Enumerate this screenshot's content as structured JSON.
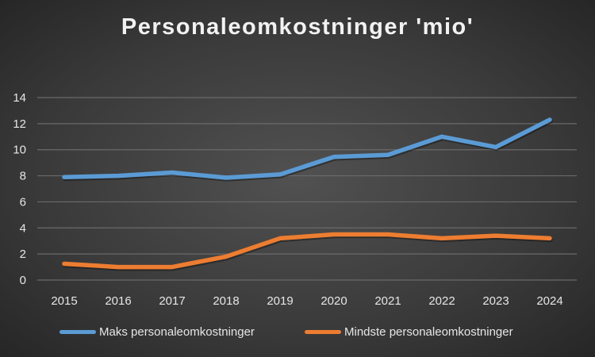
{
  "chart_data": {
    "type": "line",
    "title": "Personaleomkostninger 'mio'",
    "xlabel": "",
    "ylabel": "",
    "categories": [
      "2015",
      "2016",
      "2017",
      "2018",
      "2019",
      "2020",
      "2021",
      "2022",
      "2023",
      "2024"
    ],
    "ylim": [
      0,
      14
    ],
    "yticks": [
      "0",
      "2",
      "4",
      "6",
      "8",
      "10",
      "12",
      "14"
    ],
    "grid": true,
    "legend_position": "bottom",
    "series": [
      {
        "name": "Maks personaleomkostninger",
        "color": "#5b9bd5",
        "values": [
          7.9,
          8.0,
          8.25,
          7.85,
          8.1,
          9.45,
          9.6,
          11.0,
          10.2,
          12.3
        ]
      },
      {
        "name": "Mindste personaleomkostninger",
        "color": "#ed7d31",
        "values": [
          1.25,
          1.0,
          1.0,
          1.8,
          3.2,
          3.5,
          3.5,
          3.2,
          3.4,
          3.2
        ]
      }
    ]
  }
}
